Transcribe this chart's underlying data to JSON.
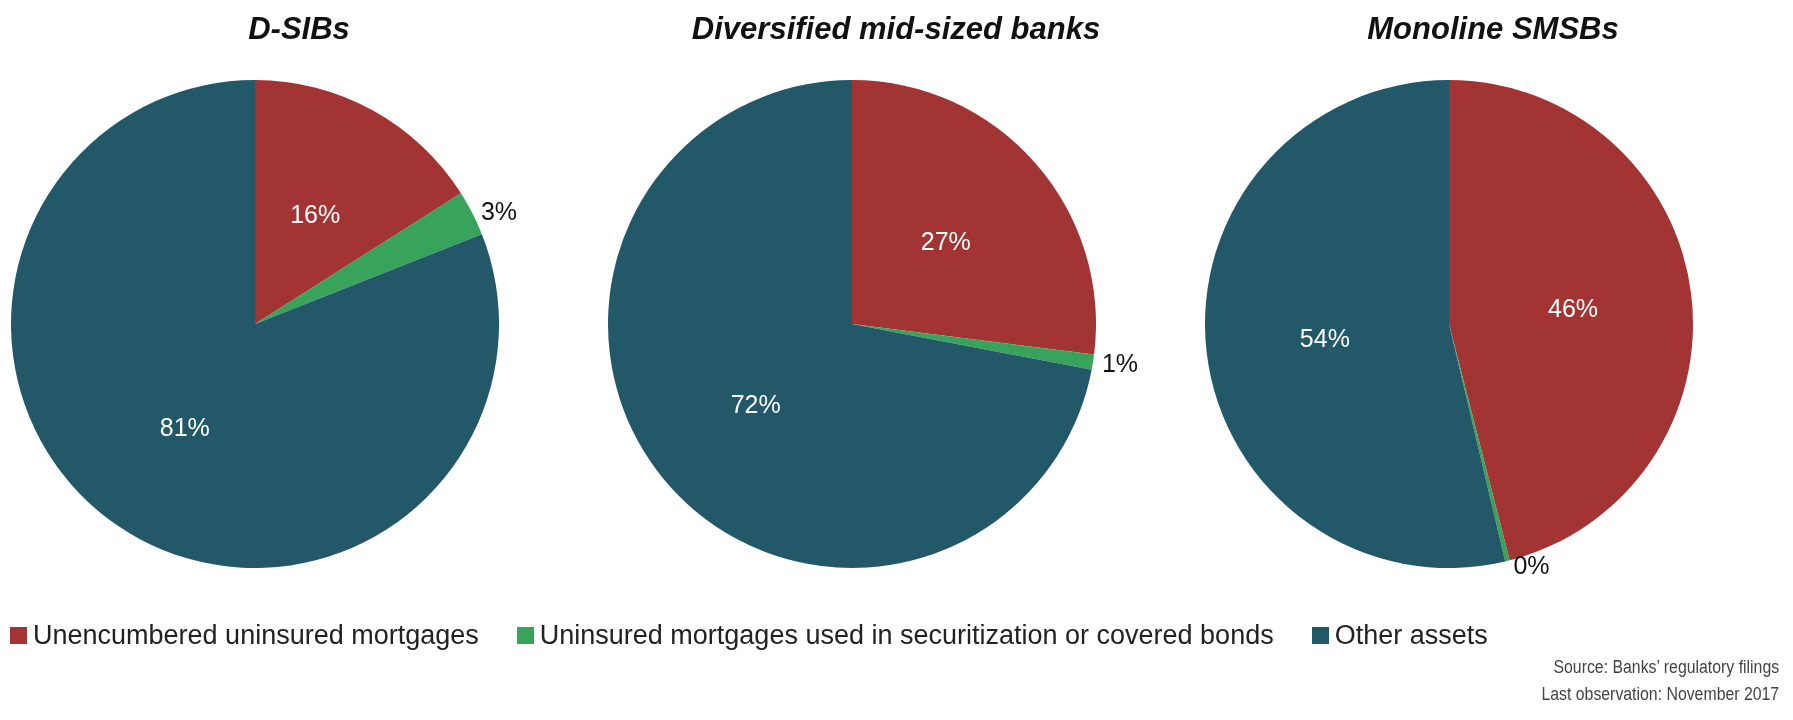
{
  "chart_data": [
    {
      "type": "pie",
      "title": "D-SIBs",
      "categories": [
        "Unencumbered uninsured mortgages",
        "Uninsured mortgages used in securitization or covered bonds",
        "Other assets"
      ],
      "values": [
        16,
        3,
        81
      ],
      "value_labels": [
        "16%",
        "3%",
        "81%"
      ],
      "colors": [
        "#a33434",
        "#38a35a",
        "#225868"
      ],
      "legend": "bottom"
    },
    {
      "type": "pie",
      "title": "Diversified mid-sized banks",
      "categories": [
        null,
        null,
        null
      ],
      "values": [
        27,
        1,
        72
      ],
      "value_labels": [
        "27%",
        "1%",
        "72%"
      ],
      "colors": [
        "#a33434",
        "#38a35a",
        "#225868"
      ]
    },
    {
      "type": "pie",
      "title": "Monoline SMSBs",
      "categories": [
        null,
        null,
        null
      ],
      "values": [
        46,
        0.3,
        53.7
      ],
      "value_labels": [
        "46%",
        "0%",
        "54%"
      ],
      "colors": [
        "#a33434",
        "#38a35a",
        "#225868"
      ],
      "annotations": [
        "Source: Banks’ regulatory filings",
        "Last observation: November 2017"
      ]
    }
  ]
}
